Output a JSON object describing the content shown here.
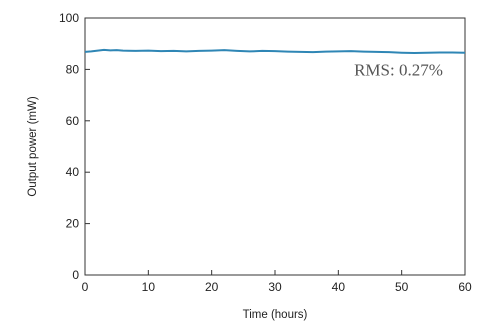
{
  "chart_data": {
    "type": "line",
    "title": "",
    "xlabel": "Time (hours)",
    "ylabel": "Output power (mW)",
    "xlim": [
      0,
      60
    ],
    "ylim": [
      0,
      100
    ],
    "xticks": [
      0,
      10,
      20,
      30,
      40,
      50,
      60
    ],
    "yticks": [
      0,
      20,
      40,
      60,
      80,
      100
    ],
    "grid": false,
    "series": [
      {
        "color": "#2f86b5",
        "x": [
          0,
          1,
          2,
          3,
          4,
          5,
          6,
          8,
          10,
          12,
          14,
          16,
          18,
          20,
          22,
          24,
          26,
          28,
          30,
          32,
          34,
          36,
          38,
          40,
          42,
          44,
          46,
          48,
          50,
          52,
          54,
          56,
          58,
          60
        ],
        "y": [
          86.8,
          87.0,
          87.3,
          87.6,
          87.4,
          87.5,
          87.3,
          87.2,
          87.3,
          87.1,
          87.2,
          87.0,
          87.2,
          87.3,
          87.5,
          87.2,
          87.0,
          87.2,
          87.1,
          86.9,
          86.8,
          86.7,
          86.9,
          87.0,
          87.1,
          86.9,
          86.8,
          86.7,
          86.5,
          86.4,
          86.5,
          86.6,
          86.6,
          86.5
        ]
      }
    ],
    "annotations": [
      {
        "text": "RMS: 0.27%",
        "x": 49.5,
        "y": 80
      }
    ]
  }
}
